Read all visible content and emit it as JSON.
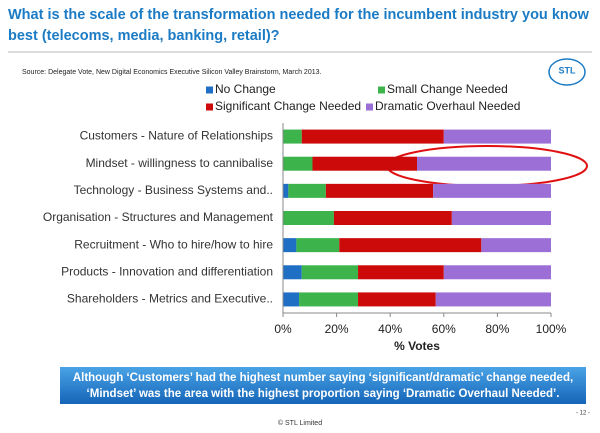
{
  "chart_data": {
    "type": "bar",
    "orientation": "horizontal",
    "stacked": true,
    "title": "What is the scale of the transformation needed for the incumbent industry you know best (telecoms, media, banking, retail)?",
    "source": "Source: Delegate Vote, New Digital Economics Executive Silicon  Valley  Brainstorm, March 2013.",
    "logo": "STL",
    "categories": [
      "Customers - Nature of Relationships",
      "Mindset - willingness to cannibalise",
      "Technology - Business Systems and..",
      "Organisation - Structures and Management",
      "Recruitment - Who to hire/how to hire",
      "Products - Innovation and differentiation",
      "Shareholders - Metrics and Executive.."
    ],
    "series": [
      {
        "name": "No Change",
        "color": "#1f6fc4",
        "values": [
          0,
          0,
          2,
          0,
          5,
          7,
          6
        ]
      },
      {
        "name": "Small Change Needed",
        "color": "#3cb44b",
        "values": [
          7,
          11,
          14,
          19,
          16,
          21,
          22
        ]
      },
      {
        "name": "Significant Change Needed",
        "color": "#cc0a0a",
        "values": [
          53,
          39,
          40,
          44,
          53,
          32,
          29
        ]
      },
      {
        "name": "Dramatic Overhaul Needed",
        "color": "#9b6fd6",
        "values": [
          40,
          50,
          44,
          37,
          26,
          40,
          43
        ]
      }
    ],
    "xlim": [
      0,
      100
    ],
    "xticks": [
      {
        "value": 0,
        "label": "0%"
      },
      {
        "value": 20,
        "label": "20%"
      },
      {
        "value": 40,
        "label": "40%"
      },
      {
        "value": 60,
        "label": "60%"
      },
      {
        "value": 80,
        "label": "80%"
      },
      {
        "value": 100,
        "label": "100%"
      }
    ],
    "xlabel": "% Votes",
    "callout": [
      "Although ‘Customers’ had the highest number saying ‘significant/dramatic’ change needed,",
      "‘Mindset’ was the area with the highest proportion saying ‘Dramatic Overhaul Needed’."
    ],
    "page_number": "- 12 -",
    "footer": "© STL Limited"
  }
}
